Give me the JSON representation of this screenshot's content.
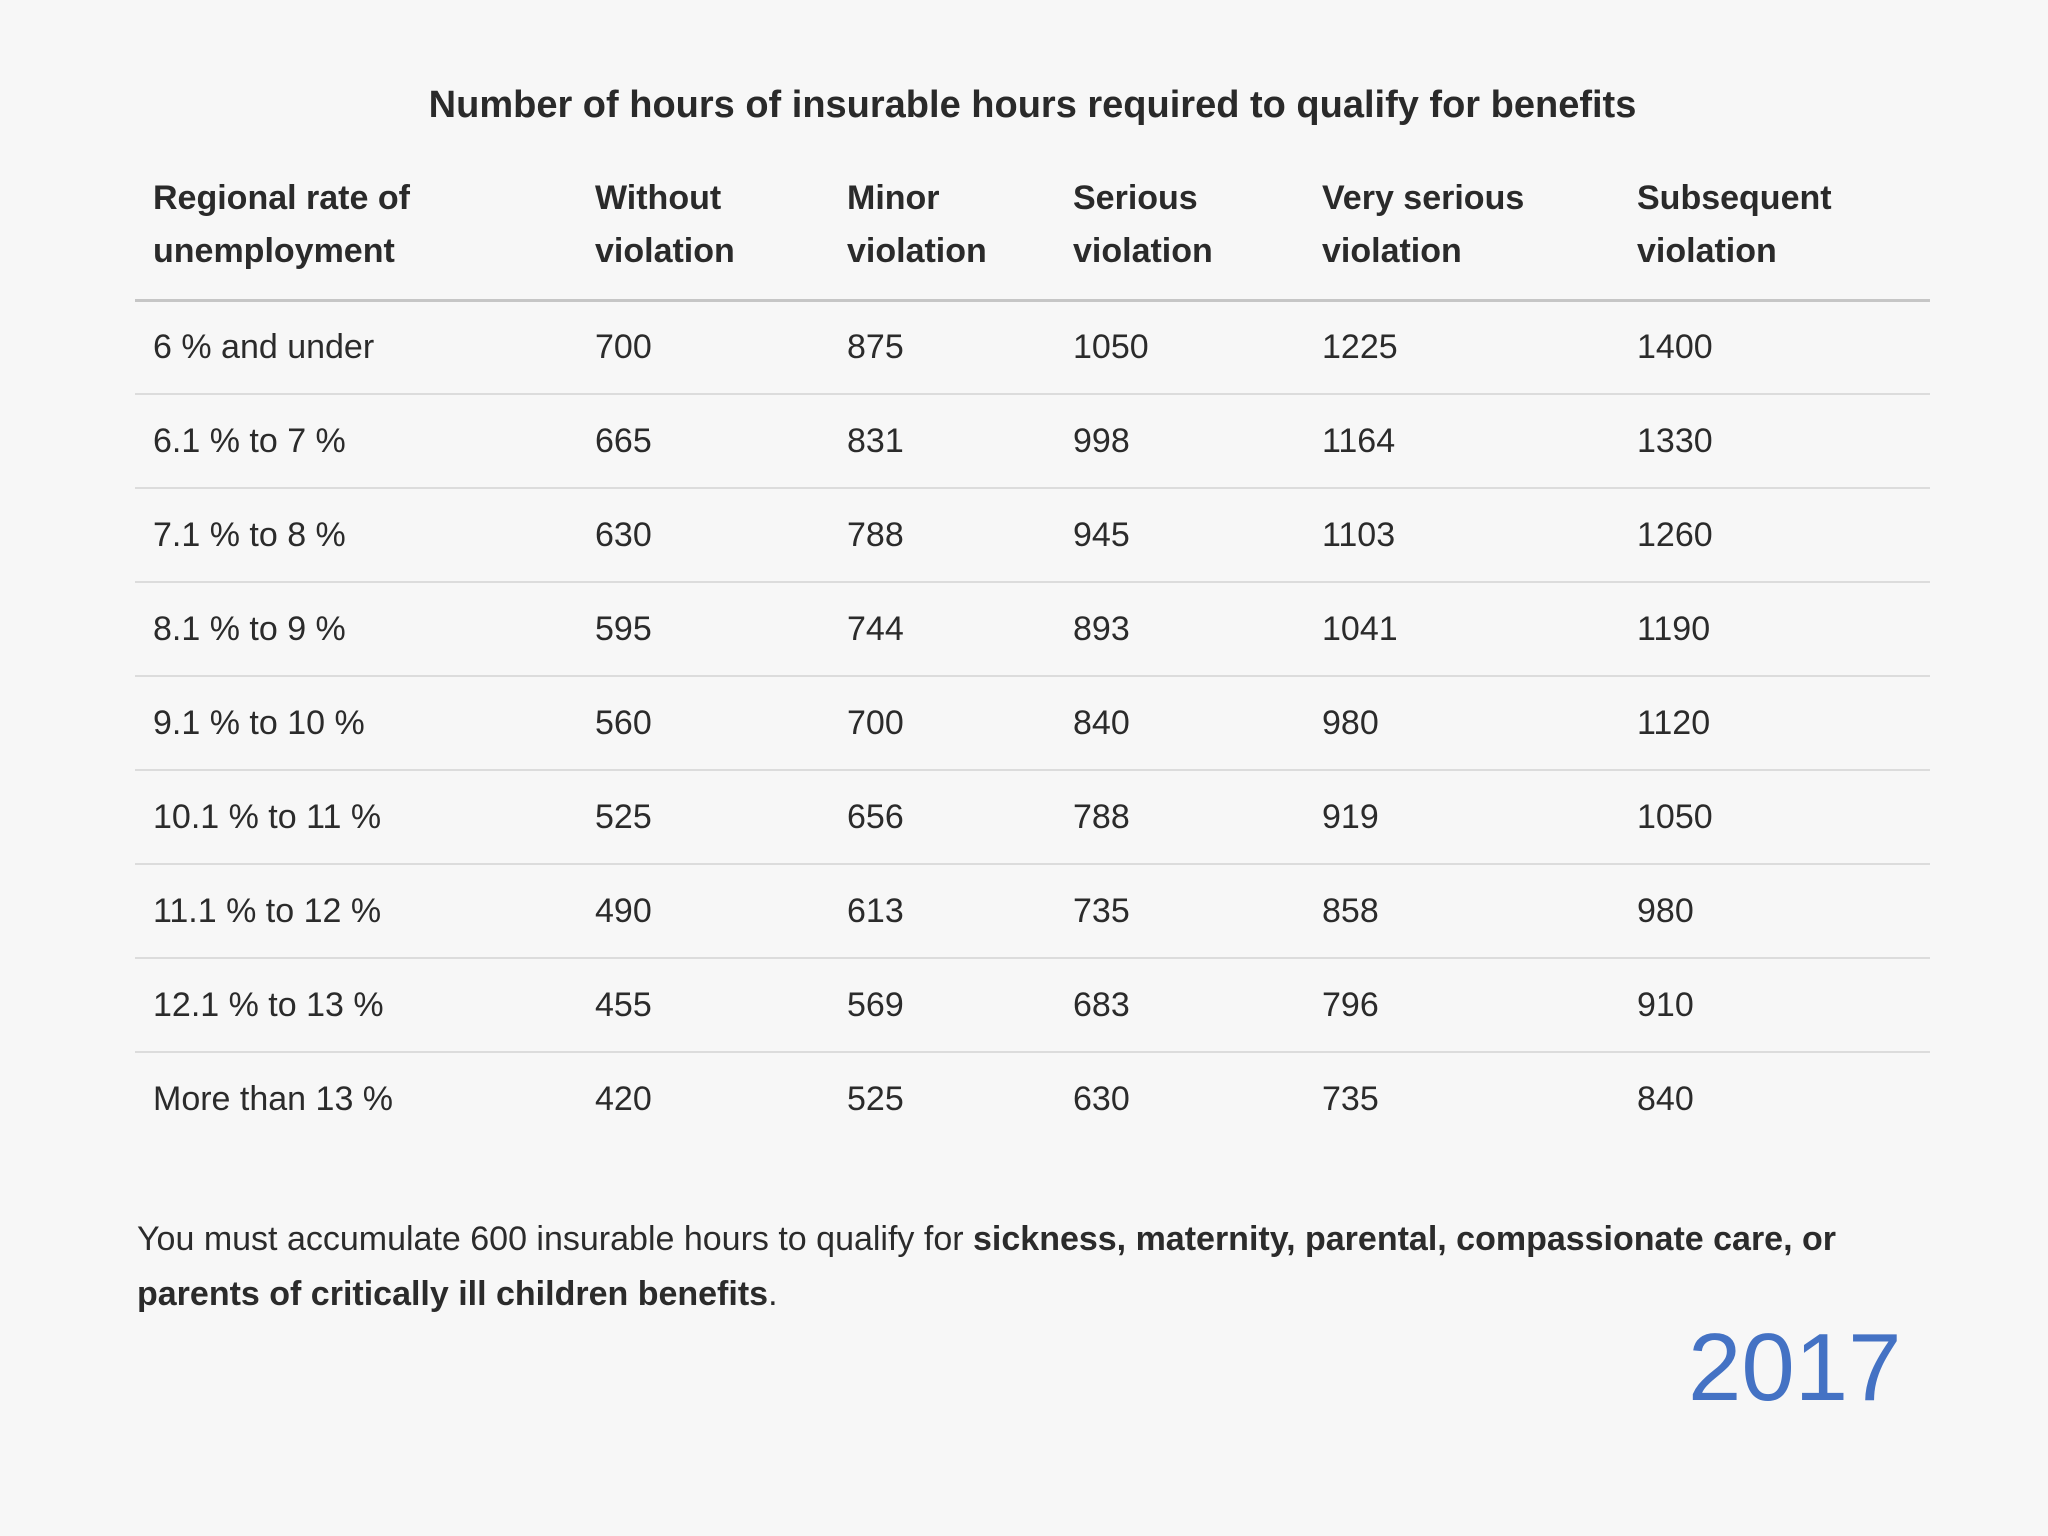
{
  "page": {
    "background_color": "#f7f7f7",
    "text_color": "#2b2b2b"
  },
  "title": "Number of hours of insurable hours required to qualify for benefits",
  "table": {
    "columns": [
      {
        "label": "Regional rate of unemployment"
      },
      {
        "label": "Without violation"
      },
      {
        "label": "Minor violation"
      },
      {
        "label": "Serious violation"
      },
      {
        "label": "Very serious violation"
      },
      {
        "label": "Subsequent violation"
      }
    ],
    "rows": [
      {
        "label": "6 % and under",
        "values": [
          "700",
          "875",
          "1050",
          "1225",
          "1400"
        ]
      },
      {
        "label": "6.1 % to 7 %",
        "values": [
          "665",
          "831",
          "998",
          "1164",
          "1330"
        ]
      },
      {
        "label": "7.1 % to 8 %",
        "values": [
          "630",
          "788",
          "945",
          "1103",
          "1260"
        ]
      },
      {
        "label": "8.1 % to 9 %",
        "values": [
          "595",
          "744",
          "893",
          "1041",
          "1190"
        ]
      },
      {
        "label": "9.1 % to 10 %",
        "values": [
          "560",
          "700",
          "840",
          "980",
          "1120"
        ]
      },
      {
        "label": "10.1 % to 11 %",
        "values": [
          "525",
          "656",
          "788",
          "919",
          "1050"
        ]
      },
      {
        "label": "11.1 % to 12 %",
        "values": [
          "490",
          "613",
          "735",
          "858",
          "980"
        ]
      },
      {
        "label": "12.1 % to 13 %",
        "values": [
          "455",
          "569",
          "683",
          "796",
          "910"
        ]
      },
      {
        "label": "More than 13 %",
        "values": [
          "420",
          "525",
          "630",
          "735",
          "840"
        ]
      }
    ]
  },
  "footnote": {
    "prefix": "You must accumulate 600 insurable hours to qualify for ",
    "bold": "sickness, maternity, parental, compassionate care, or parents of critically ill children benefits",
    "suffix": "."
  },
  "year": {
    "label": "2017",
    "color": "#4472c4"
  }
}
